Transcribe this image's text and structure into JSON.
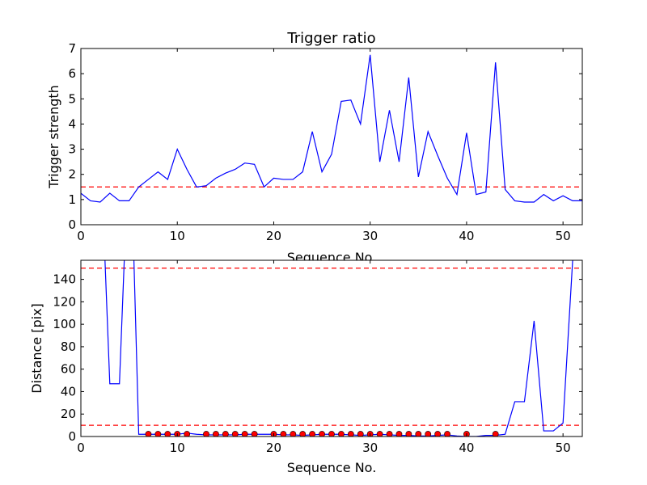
{
  "chart_data": [
    {
      "type": "line",
      "title": "Trigger ratio",
      "xlabel": "Sequence No.",
      "ylabel": "Trigger strength",
      "xlim": [
        0,
        52
      ],
      "ylim": [
        0,
        7
      ],
      "xticks": [
        "0",
        "10",
        "20",
        "30",
        "40",
        "50"
      ],
      "yticks": [
        "0",
        "1",
        "2",
        "3",
        "4",
        "5",
        "6",
        "7"
      ],
      "grid": false,
      "series": [
        {
          "kind": "line",
          "color": "#0000ff",
          "x": [
            0,
            1,
            2,
            3,
            4,
            5,
            6,
            7,
            8,
            9,
            10,
            11,
            12,
            13,
            14,
            15,
            16,
            17,
            18,
            19,
            20,
            21,
            22,
            23,
            24,
            25,
            26,
            27,
            28,
            29,
            30,
            31,
            32,
            33,
            34,
            35,
            36,
            37,
            38,
            39,
            40,
            41,
            42,
            43,
            44,
            45,
            46,
            47,
            48,
            49,
            50,
            51,
            52
          ],
          "y": [
            1.25,
            0.95,
            0.9,
            1.25,
            0.95,
            0.95,
            1.5,
            1.8,
            2.1,
            1.8,
            3.0,
            2.2,
            1.5,
            1.55,
            1.85,
            2.05,
            2.2,
            2.45,
            2.4,
            1.5,
            1.85,
            1.8,
            1.8,
            2.1,
            3.7,
            2.1,
            2.8,
            4.9,
            4.95,
            4.0,
            6.75,
            2.5,
            4.55,
            2.5,
            5.85,
            1.9,
            3.7,
            2.75,
            1.85,
            1.2,
            3.65,
            1.2,
            1.3,
            6.45,
            1.4,
            0.95,
            0.9,
            0.9,
            1.2,
            0.95,
            1.15,
            0.95,
            0.95
          ]
        }
      ],
      "hlines": [
        {
          "y": 1.5,
          "color": "#ff0000",
          "style": "dashed"
        }
      ]
    },
    {
      "type": "line",
      "title": "",
      "xlabel": "Sequence No.",
      "ylabel": "Distance [pix]",
      "xlim": [
        0,
        52
      ],
      "ylim": [
        0,
        157
      ],
      "xticks": [
        "0",
        "10",
        "20",
        "30",
        "40",
        "50"
      ],
      "yticks": [
        "0",
        "20",
        "40",
        "60",
        "80",
        "100",
        "120",
        "140"
      ],
      "grid": false,
      "series": [
        {
          "kind": "line",
          "color": "#0000ff",
          "x": [
            2,
            2.5,
            3,
            4,
            4.5,
            5,
            5.5,
            6,
            7,
            8,
            9,
            10,
            11,
            12,
            13,
            14,
            15,
            16,
            17,
            18,
            19,
            20,
            21,
            22,
            23,
            24,
            25,
            26,
            27,
            28,
            29,
            30,
            31,
            32,
            33,
            34,
            35,
            36,
            37,
            38,
            39,
            40,
            41,
            42,
            43,
            44,
            45,
            46,
            47,
            48,
            49,
            50,
            51,
            51.2
          ],
          "y": [
            250,
            157,
            47,
            47,
            157,
            250,
            157,
            2,
            2,
            2,
            2,
            2,
            3,
            2,
            1.5,
            1.5,
            1.5,
            1.5,
            2,
            2,
            2,
            2,
            1.5,
            1.5,
            1,
            1.5,
            2,
            2,
            2,
            1.5,
            1,
            1.5,
            2,
            1.5,
            1,
            1,
            0.5,
            0.5,
            1,
            1.5,
            0.5,
            0,
            0,
            1,
            1,
            2,
            31,
            31,
            103,
            5,
            5,
            12,
            157,
            250
          ]
        },
        {
          "kind": "markers",
          "color": "#ff0000",
          "x": [
            7,
            8,
            9,
            10,
            11,
            13,
            14,
            15,
            16,
            17,
            18,
            20,
            21,
            22,
            23,
            24,
            25,
            26,
            27,
            28,
            29,
            30,
            31,
            32,
            33,
            34,
            35,
            36,
            37,
            38,
            40,
            43
          ],
          "y": [
            1.5,
            1.5,
            1,
            1,
            2,
            1,
            1,
            1,
            1.5,
            1.5,
            1.5,
            1.5,
            1,
            1,
            0.5,
            1,
            1.5,
            1.5,
            1.5,
            1,
            0.5,
            1,
            1.5,
            1,
            0.5,
            0.5,
            0,
            0,
            0.5,
            0.5,
            0,
            0
          ]
        }
      ],
      "hlines": [
        {
          "y": 150,
          "color": "#ff0000",
          "style": "dashed"
        },
        {
          "y": 10,
          "color": "#ff0000",
          "style": "dashed"
        }
      ]
    }
  ]
}
